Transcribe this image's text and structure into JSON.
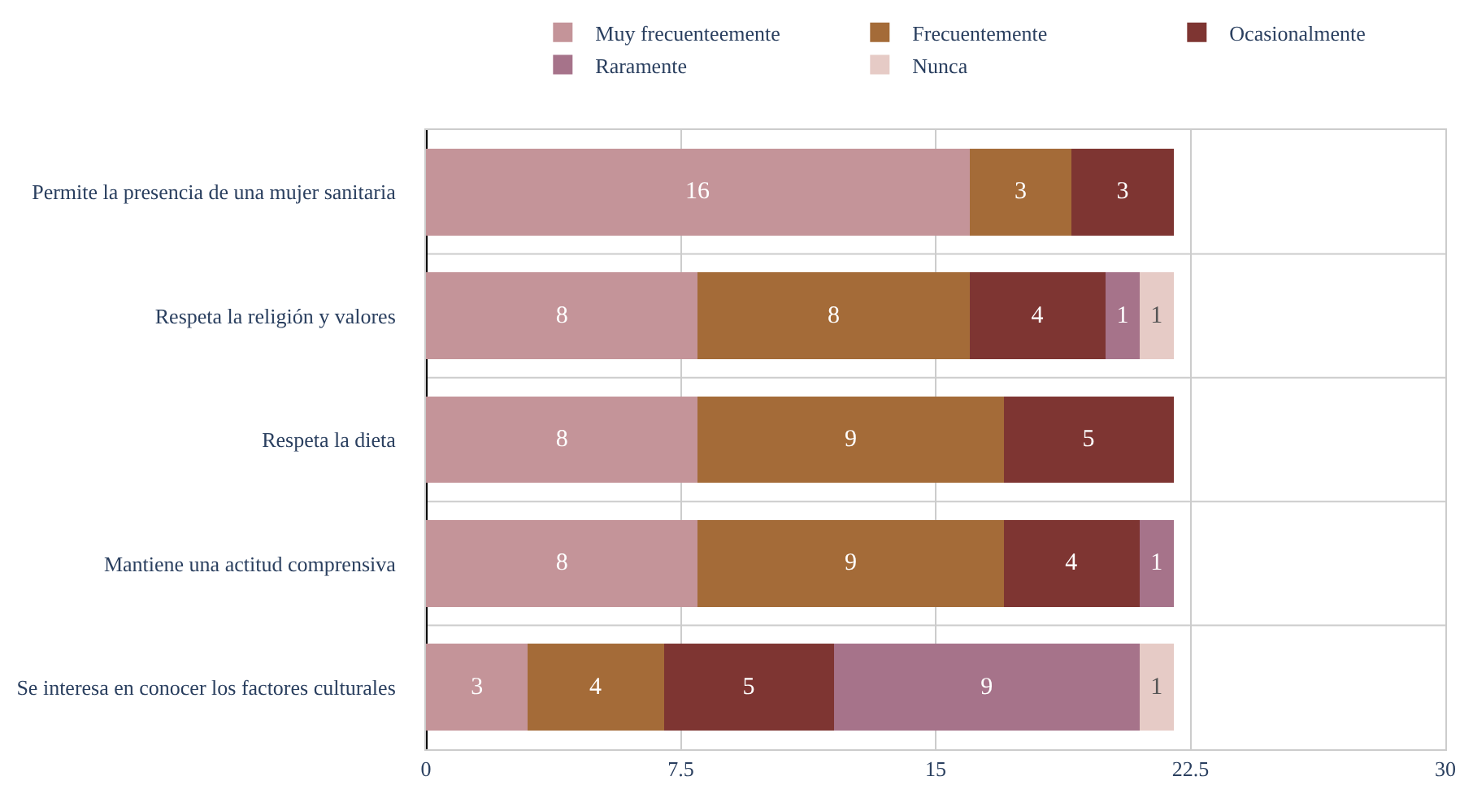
{
  "chart_data": {
    "type": "bar",
    "orientation": "horizontal",
    "stacked": true,
    "data_labels": true,
    "grid": "x",
    "legend": "top",
    "categories": [
      "Permite la presencia de una mujer sanitaria",
      "Respeta la religión y valores",
      "Respeta la dieta",
      "Mantiene una actitud comprensiva",
      "Se interesa en conocer los factores culturales"
    ],
    "series": [
      {
        "name": "Muy frecuenteemente",
        "color": "#c49499",
        "values": [
          16,
          8,
          8,
          8,
          3
        ]
      },
      {
        "name": "Frecuentemente",
        "color": "#a46b38",
        "values": [
          3,
          8,
          9,
          9,
          4
        ]
      },
      {
        "name": "Ocasionalmente",
        "color": "#7e3532",
        "values": [
          3,
          4,
          5,
          4,
          5
        ]
      },
      {
        "name": "Raramente",
        "color": "#a6738a",
        "values": [
          null,
          1,
          null,
          1,
          9
        ]
      },
      {
        "name": "Nunca",
        "color": "#e6cbc6",
        "values": [
          null,
          1,
          null,
          null,
          1
        ]
      }
    ],
    "xlim": [
      0,
      30
    ],
    "xticks": [
      0,
      7.5,
      15,
      22.5,
      30
    ]
  }
}
